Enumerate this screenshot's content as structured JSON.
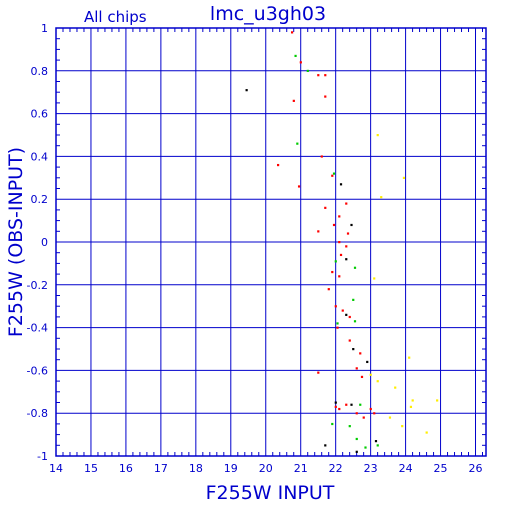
{
  "chart_data": {
    "type": "scatter",
    "title": "lmc_u3gh03",
    "subtitle": "All chips",
    "xlabel": "F255W INPUT",
    "ylabel": "F255W (OBS-INPUT)",
    "xlim": [
      14,
      26.3
    ],
    "ylim": [
      -1,
      1
    ],
    "xticks": [
      "14",
      "15",
      "16",
      "17",
      "18",
      "19",
      "20",
      "21",
      "22",
      "23",
      "24",
      "25",
      "26"
    ],
    "yticks": [
      "-1",
      "-0.8",
      "-0.6",
      "-0.4",
      "-0.2",
      "0",
      "0.2",
      "0.4",
      "0.6",
      "0.8",
      "1"
    ],
    "grid": true,
    "colors": {
      "axis": "#0000cc",
      "grid": "#0000cc",
      "black": "#000000",
      "red": "#ff0000",
      "green": "#00cc00",
      "yellow": "#ffee00"
    },
    "series": [
      {
        "color_key": "black",
        "points": [
          [
            19.45,
            0.71
          ],
          [
            22.15,
            0.27
          ],
          [
            22.45,
            0.08
          ],
          [
            22.3,
            -0.08
          ],
          [
            22.5,
            -0.5
          ],
          [
            22.9,
            -0.56
          ],
          [
            22.0,
            -0.75
          ],
          [
            22.45,
            -0.76
          ],
          [
            21.7,
            -0.95
          ],
          [
            23.15,
            -0.93
          ],
          [
            22.6,
            -0.98
          ],
          [
            22.3,
            -0.34
          ]
        ]
      },
      {
        "color_key": "red",
        "points": [
          [
            20.75,
            0.98
          ],
          [
            21.0,
            0.84
          ],
          [
            21.5,
            0.78
          ],
          [
            21.7,
            0.78
          ],
          [
            20.8,
            0.66
          ],
          [
            21.7,
            0.68
          ],
          [
            21.6,
            0.4
          ],
          [
            20.35,
            0.36
          ],
          [
            20.95,
            0.26
          ],
          [
            21.9,
            0.31
          ],
          [
            22.3,
            0.18
          ],
          [
            21.7,
            0.16
          ],
          [
            22.1,
            0.12
          ],
          [
            21.95,
            0.08
          ],
          [
            21.5,
            0.05
          ],
          [
            22.35,
            0.04
          ],
          [
            22.1,
            0.0
          ],
          [
            22.3,
            -0.02
          ],
          [
            22.15,
            -0.06
          ],
          [
            21.9,
            -0.14
          ],
          [
            22.1,
            -0.16
          ],
          [
            21.8,
            -0.22
          ],
          [
            22.0,
            -0.3
          ],
          [
            22.2,
            -0.32
          ],
          [
            22.4,
            -0.35
          ],
          [
            22.05,
            -0.4
          ],
          [
            22.4,
            -0.46
          ],
          [
            22.7,
            -0.52
          ],
          [
            22.75,
            -0.63
          ],
          [
            21.5,
            -0.61
          ],
          [
            22.6,
            -0.59
          ],
          [
            22.0,
            -0.77
          ],
          [
            22.6,
            -0.8
          ],
          [
            22.1,
            -0.78
          ],
          [
            23.1,
            -0.8
          ],
          [
            22.3,
            -0.76
          ],
          [
            22.8,
            -0.82
          ],
          [
            23.0,
            -0.78
          ]
        ]
      },
      {
        "color_key": "green",
        "points": [
          [
            20.85,
            0.87
          ],
          [
            21.2,
            0.8
          ],
          [
            20.9,
            0.46
          ],
          [
            21.95,
            0.32
          ],
          [
            22.0,
            -0.09
          ],
          [
            22.55,
            -0.12
          ],
          [
            22.5,
            -0.27
          ],
          [
            22.05,
            -0.38
          ],
          [
            22.55,
            -0.37
          ],
          [
            22.7,
            -0.76
          ],
          [
            22.6,
            -0.92
          ],
          [
            22.85,
            -0.96
          ],
          [
            23.2,
            -0.95
          ],
          [
            22.4,
            -0.86
          ],
          [
            21.9,
            -0.85
          ]
        ]
      },
      {
        "color_key": "yellow",
        "points": [
          [
            23.2,
            0.5
          ],
          [
            23.95,
            0.3
          ],
          [
            23.3,
            0.21
          ],
          [
            23.1,
            -0.17
          ],
          [
            24.1,
            -0.54
          ],
          [
            23.2,
            -0.65
          ],
          [
            23.7,
            -0.68
          ],
          [
            24.2,
            -0.74
          ],
          [
            24.15,
            -0.77
          ],
          [
            24.9,
            -0.74
          ],
          [
            24.6,
            -0.89
          ],
          [
            23.0,
            -0.62
          ],
          [
            23.55,
            -0.82
          ],
          [
            23.9,
            -0.86
          ]
        ]
      }
    ]
  }
}
